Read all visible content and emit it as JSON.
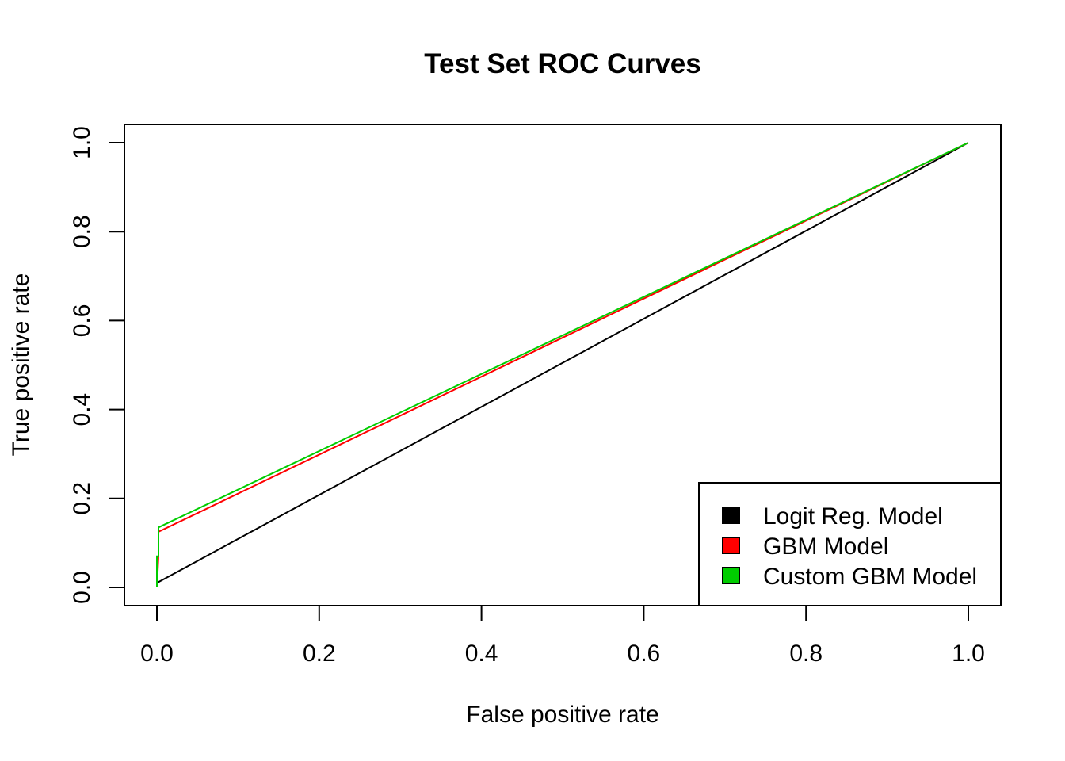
{
  "chart_data": {
    "type": "line",
    "title": "Test Set ROC Curves",
    "xlabel": "False positive rate",
    "ylabel": "True positive rate",
    "xlim": [
      0.0,
      1.0
    ],
    "ylim": [
      0.0,
      1.0
    ],
    "x_ticks": [
      "0.0",
      "0.2",
      "0.4",
      "0.6",
      "0.8",
      "1.0"
    ],
    "y_ticks": [
      "0.0",
      "0.2",
      "0.4",
      "0.6",
      "0.8",
      "1.0"
    ],
    "grid": false,
    "legend_position": "bottom-right",
    "series": [
      {
        "name": "Logit Reg. Model",
        "color": "#000000",
        "x": [
          0.0,
          0.0,
          1.0
        ],
        "y": [
          0.0,
          0.01,
          1.0
        ]
      },
      {
        "name": "GBM Model",
        "color": "#ff0000",
        "x": [
          0.0,
          0.002,
          0.002,
          1.0
        ],
        "y": [
          0.0,
          0.07,
          0.125,
          1.0
        ]
      },
      {
        "name": "Custom GBM Model",
        "color": "#00cd00",
        "x": [
          0.0,
          0.0,
          0.002,
          0.002,
          1.0
        ],
        "y": [
          0.0,
          0.07,
          0.07,
          0.135,
          1.0
        ]
      }
    ]
  }
}
